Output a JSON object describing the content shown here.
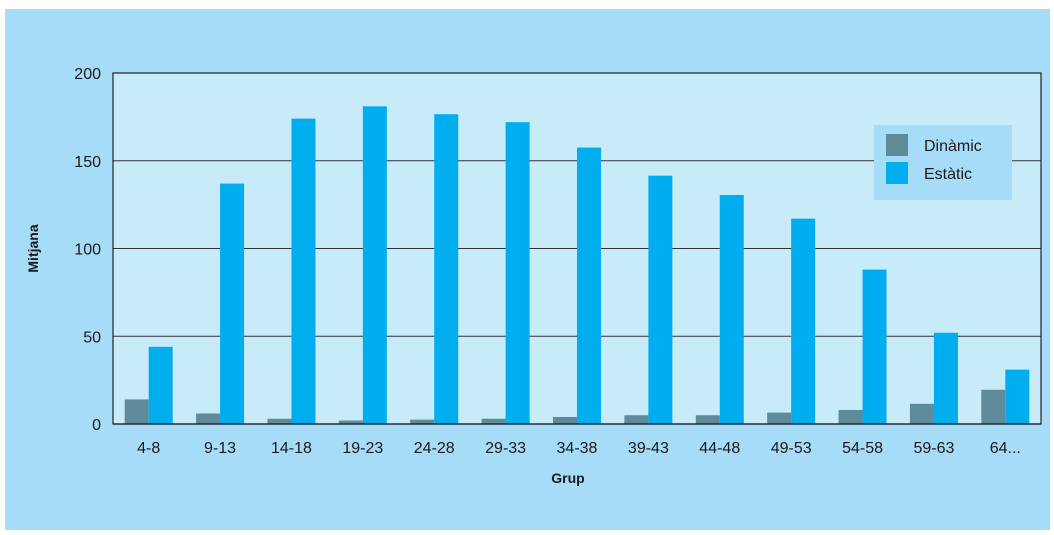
{
  "chart_data": {
    "type": "bar",
    "xlabel": "Grup",
    "ylabel": "Mitjana",
    "ylim": [
      0,
      200
    ],
    "yticks": [
      0,
      50,
      100,
      150,
      200
    ],
    "categories": [
      "4-8",
      "9-13",
      "14-18",
      "19-23",
      "24-28",
      "29-33",
      "34-38",
      "39-43",
      "44-48",
      "49-53",
      "54-58",
      "59-63",
      "64..."
    ],
    "series": [
      {
        "name": "Dinàmic",
        "color": "#5f8a9a",
        "values": [
          14,
          6,
          3,
          2,
          2.5,
          3,
          4,
          5,
          5,
          6.5,
          8,
          11.5,
          19.5
        ]
      },
      {
        "name": "Estàtic",
        "color": "#00aeef",
        "values": [
          44,
          137,
          174,
          181,
          176.5,
          172,
          157.5,
          141.5,
          130.5,
          117,
          88,
          52,
          31
        ]
      }
    ],
    "grid": true,
    "legend_position": "top-right",
    "plot_background": "#c8ebfa",
    "frame_background": "#a6dcf7"
  }
}
